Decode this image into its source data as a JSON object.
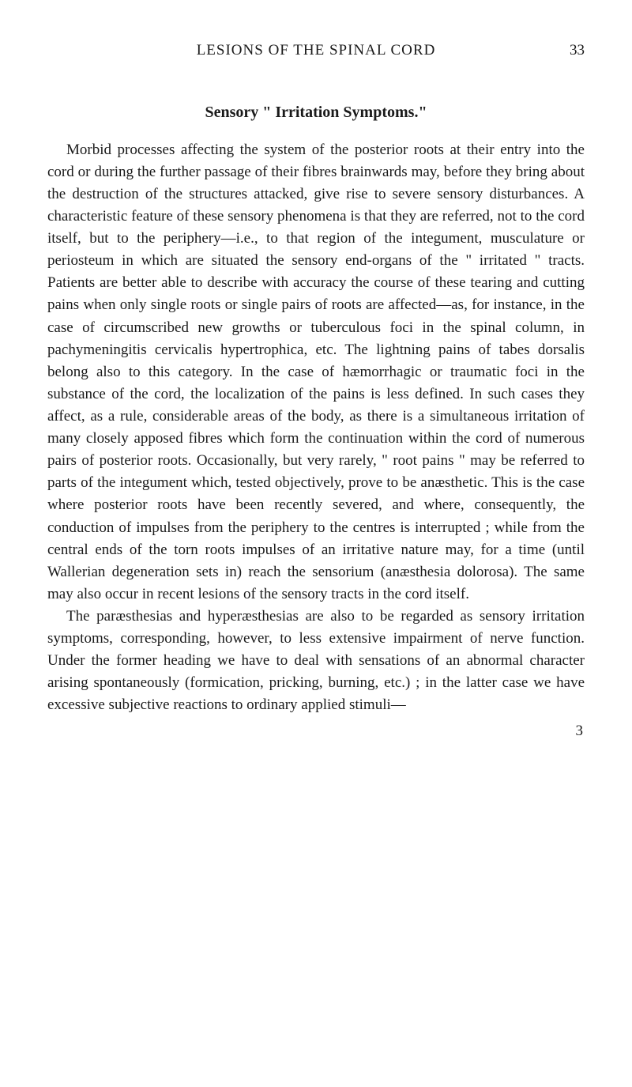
{
  "header": {
    "running_title": "LESIONS OF THE SPINAL CORD",
    "page_number": "33"
  },
  "section": {
    "heading": "Sensory \" Irritation Symptoms.\""
  },
  "paragraphs": {
    "p1": "Morbid processes affecting the system of the posterior roots at their entry into the cord or during the further passage of their fibres brainwards may, before they bring about the destruction of the structures attacked, give rise to severe sensory disturbances. A characteristic feature of these sensory phenomena is that they are referred, not to the cord itself, but to the periphery—i.e., to that region of the integument, musculature or periosteum in which are situated the sensory end-organs of the \" irritated \" tracts. Patients are better able to describe with accuracy the course of these tearing and cutting pains when only single roots or single pairs of roots are affected—as, for instance, in the case of circumscribed new growths or tuberculous foci in the spinal column, in pachymeningitis cervicalis hypertrophica, etc. The lightning pains of tabes dorsalis belong also to this category. In the case of hæmorrhagic or traumatic foci in the substance of the cord, the localization of the pains is less defined. In such cases they affect, as a rule, considerable areas of the body, as there is a simultaneous irritation of many closely apposed fibres which form the continuation within the cord of numerous pairs of posterior roots. Occasionally, but very rarely, \" root pains \" may be referred to parts of the integument which, tested objectively, prove to be anæsthetic. This is the case where posterior roots have been recently severed, and where, consequently, the conduction of impulses from the periphery to the centres is interrupted ; while from the central ends of the torn roots impulses of an irritative nature may, for a time (until Wallerian degeneration sets in) reach the sensorium (anæsthesia dolorosa). The same may also occur in recent lesions of the sensory tracts in the cord itself.",
    "p2": "The paræsthesias and hyperæsthesias are also to be regarded as sensory irritation symptoms, corresponding, however, to less extensive impairment of nerve function. Under the former heading we have to deal with sensations of an abnormal character arising spontaneously (formication, pricking, burning, etc.) ; in the latter case we have excessive subjective reactions to ordinary applied stimuli—"
  },
  "footer": {
    "sig_number": "3"
  },
  "typography": {
    "body_fontsize": 19,
    "heading_fontsize": 20,
    "text_color": "#1a1a1a",
    "background_color": "#ffffff",
    "font_family": "Georgia"
  }
}
